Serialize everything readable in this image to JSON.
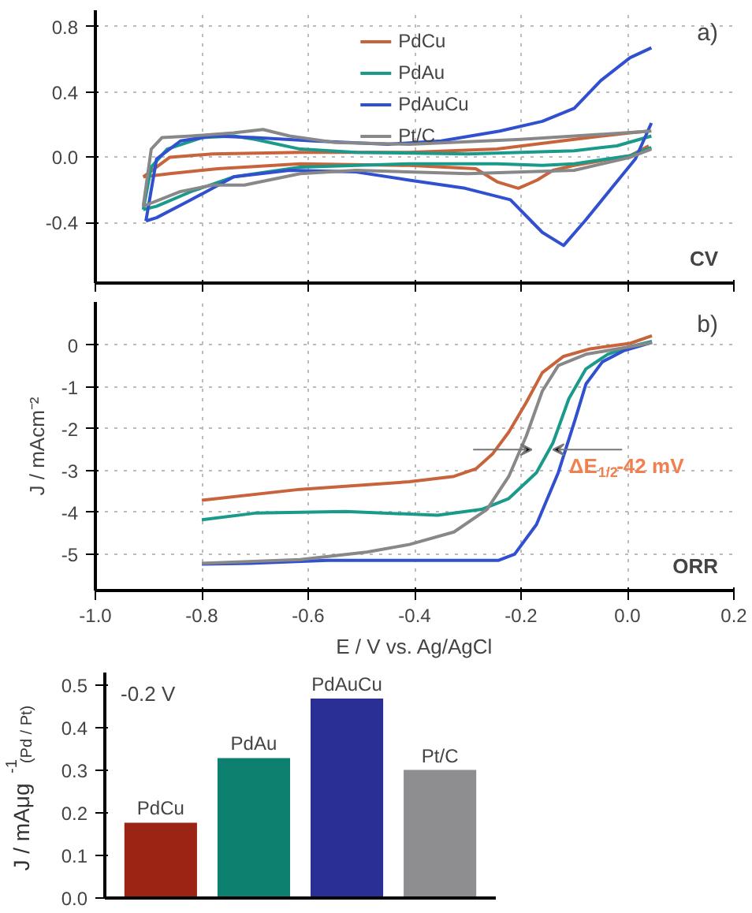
{
  "chart_data": [
    {
      "type": "line",
      "annotations": [
        "a)",
        "CV"
      ],
      "xlim": [
        -1.0,
        0.2
      ],
      "ylim": [
        -0.77,
        0.9
      ],
      "xticks": [
        -1.0,
        -0.8,
        -0.6,
        -0.4,
        -0.2,
        0.0,
        0.2
      ],
      "yticks": [
        {
          "value": -0.4,
          "label": "-0.4"
        },
        {
          "value": 0.0,
          "label": "0.0"
        },
        {
          "value": 0.4,
          "label": "0.4"
        },
        {
          "value": 0.8,
          "label": "0.8"
        }
      ],
      "tick_labels": "y",
      "grid": true,
      "legend": "top",
      "series": [
        {
          "name": "PdCu",
          "color": "#c8643c",
          "x": [
            -0.91,
            -0.86,
            -0.78,
            -0.615,
            -0.41,
            -0.245,
            -0.1,
            0.005,
            0.04
          ],
          "values": [
            -0.12,
            0.0,
            0.02,
            0.03,
            0.03,
            0.05,
            0.11,
            0.15,
            0.16
          ]
        },
        {
          "color": "#c8643c",
          "x": [
            -0.91,
            -0.86,
            -0.77,
            -0.615,
            -0.41,
            -0.285,
            -0.245,
            -0.205,
            -0.17,
            -0.14,
            -0.1,
            0.005,
            0.04
          ],
          "values": [
            -0.12,
            -0.1,
            -0.07,
            -0.04,
            -0.05,
            -0.07,
            -0.15,
            -0.19,
            -0.14,
            -0.08,
            -0.05,
            0.01,
            0.07
          ]
        },
        {
          "name": "PdAu",
          "color": "#1a9a8a",
          "x": [
            -0.91,
            -0.895,
            -0.865,
            -0.8,
            -0.74,
            -0.7,
            -0.615,
            -0.51,
            -0.3,
            -0.1,
            -0.02,
            0.045
          ],
          "values": [
            -0.32,
            -0.06,
            0.05,
            0.12,
            0.13,
            0.11,
            0.05,
            0.03,
            0.02,
            0.04,
            0.07,
            0.13
          ]
        },
        {
          "color": "#1a9a8a",
          "x": [
            -0.91,
            -0.885,
            -0.82,
            -0.74,
            -0.615,
            -0.41,
            -0.245,
            -0.16,
            -0.1,
            0.005,
            0.045
          ],
          "values": [
            -0.32,
            -0.3,
            -0.21,
            -0.12,
            -0.06,
            -0.04,
            -0.04,
            -0.05,
            -0.04,
            0.01,
            0.06
          ]
        },
        {
          "name": "PdAuCu",
          "color": "#3050d0",
          "x": [
            -0.905,
            -0.885,
            -0.84,
            -0.78,
            -0.7,
            -0.59,
            -0.45,
            -0.35,
            -0.24,
            -0.16,
            -0.1,
            -0.05,
            0.005,
            0.045
          ],
          "values": [
            -0.39,
            -0.01,
            0.1,
            0.13,
            0.12,
            0.1,
            0.08,
            0.1,
            0.16,
            0.22,
            0.3,
            0.47,
            0.61,
            0.67
          ]
        },
        {
          "color": "#3050d0",
          "x": [
            -0.905,
            -0.885,
            -0.82,
            -0.74,
            -0.635,
            -0.51,
            -0.41,
            -0.305,
            -0.22,
            -0.16,
            -0.12,
            -0.08,
            -0.03,
            0.015,
            0.045
          ],
          "values": [
            -0.39,
            -0.37,
            -0.26,
            -0.12,
            -0.08,
            -0.09,
            -0.14,
            -0.19,
            -0.26,
            -0.46,
            -0.54,
            -0.39,
            -0.19,
            -0.01,
            0.21
          ]
        },
        {
          "name": "Pt/C",
          "color": "#888888",
          "x": [
            -0.91,
            -0.895,
            -0.875,
            -0.82,
            -0.74,
            -0.685,
            -0.635,
            -0.55,
            -0.41,
            -0.2,
            -0.1,
            0.045
          ],
          "values": [
            -0.3,
            0.05,
            0.12,
            0.13,
            0.15,
            0.17,
            0.13,
            0.09,
            0.08,
            0.11,
            0.13,
            0.16
          ]
        },
        {
          "color": "#888888",
          "x": [
            -0.91,
            -0.895,
            -0.84,
            -0.78,
            -0.72,
            -0.615,
            -0.51,
            -0.3,
            -0.1,
            0.005,
            0.045
          ],
          "values": [
            -0.3,
            -0.28,
            -0.21,
            -0.17,
            -0.17,
            -0.1,
            -0.08,
            -0.1,
            -0.08,
            0.0,
            0.05
          ]
        }
      ]
    },
    {
      "type": "line",
      "xlabel": "E / V vs. Ag/AgCl",
      "ylabel": "J / mAcm⁻²",
      "annotations": [
        "b)",
        "ORR",
        {
          "text": "ΔE$_{1/2}$-42 mV",
          "x": -0.11,
          "y": -2.9
        }
      ],
      "xlim": [
        -1.0,
        0.2
      ],
      "ylim": [
        -5.87,
        1.03
      ],
      "xticks": [
        {
          "value": -1.0,
          "label": "-1.0"
        },
        -0.8,
        -0.6,
        -0.4,
        -0.2,
        {
          "value": 0.0,
          "label": "0.0"
        },
        0.2
      ],
      "yticks": [
        -5,
        -4,
        -3,
        -2,
        -1,
        0
      ],
      "grid": true,
      "series": [
        {
          "color": "#c8643c",
          "x": [
            -0.8,
            -0.615,
            -0.41,
            -0.326,
            -0.285,
            -0.254,
            -0.223,
            -0.19,
            -0.16,
            -0.12,
            -0.07,
            0.005,
            0.046
          ],
          "values": [
            -3.71,
            -3.45,
            -3.27,
            -3.14,
            -2.96,
            -2.61,
            -2.08,
            -1.37,
            -0.66,
            -0.27,
            -0.09,
            0.04,
            0.22
          ]
        },
        {
          "color": "#1a9a8a",
          "x": [
            -0.8,
            -0.7,
            -0.53,
            -0.357,
            -0.274,
            -0.223,
            -0.171,
            -0.14,
            -0.11,
            -0.078,
            -0.037,
            0.005,
            0.046
          ],
          "values": [
            -4.18,
            -4.02,
            -3.98,
            -4.07,
            -3.93,
            -3.67,
            -3.05,
            -2.34,
            -1.28,
            -0.57,
            -0.22,
            -0.04,
            0.09
          ]
        },
        {
          "color": "#3050d0",
          "x": [
            -0.8,
            -0.71,
            -0.564,
            -0.243,
            -0.212,
            -0.171,
            -0.13,
            -0.099,
            -0.078,
            -0.047,
            -0.006,
            0.046
          ],
          "values": [
            -5.24,
            -5.22,
            -5.15,
            -5.15,
            -5.0,
            -4.29,
            -3.05,
            -1.81,
            -0.93,
            -0.4,
            -0.13,
            0.06
          ]
        },
        {
          "color": "#888888",
          "x": [
            -0.8,
            -0.615,
            -0.49,
            -0.41,
            -0.326,
            -0.264,
            -0.223,
            -0.19,
            -0.16,
            -0.13,
            -0.078,
            0.005,
            0.046
          ],
          "values": [
            -5.22,
            -5.13,
            -4.95,
            -4.77,
            -4.47,
            -3.93,
            -3.14,
            -2.17,
            -1.1,
            -0.49,
            -0.22,
            -0.04,
            0.06
          ]
        }
      ]
    },
    {
      "type": "bar",
      "ylabel": "J / mAμg$^{-1}$$_{(Pd / Pt)}$",
      "annotations": [
        "-0.2 V"
      ],
      "categories": [
        "PdCu",
        "PdAu",
        "PdAuCu",
        "Pt/C"
      ],
      "values": [
        0.177,
        0.329,
        0.469,
        0.301
      ],
      "colors": [
        "#9b2415",
        "#0e8070",
        "#2a2f96",
        "#8e8e90"
      ],
      "ylim": [
        0,
        0.53
      ],
      "yticks": [
        {
          "value": 0,
          "label": "0.0"
        },
        0.1,
        0.2,
        0.3,
        0.4,
        0.5
      ],
      "tick_labels": "y"
    }
  ]
}
